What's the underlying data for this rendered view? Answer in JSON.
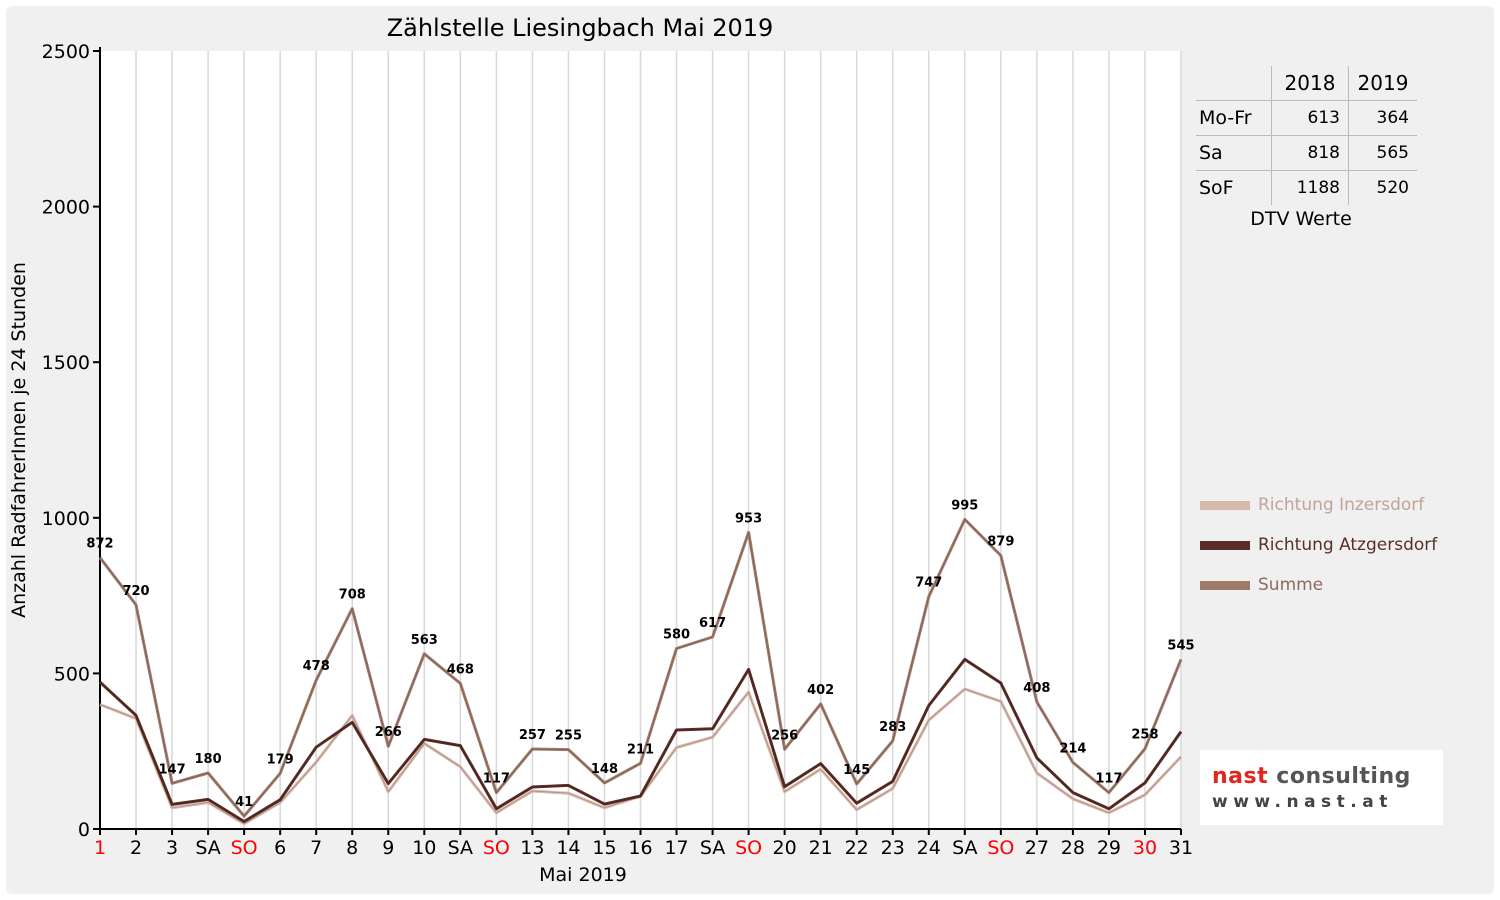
{
  "colors": {
    "background": "#f0f0f0",
    "inzersdorf": "#d9b9ab",
    "atzgersdorf": "#5a2e26",
    "summe": "#a07b6c",
    "weekend_label": "#ff0000",
    "grid": "#d8d8d8"
  },
  "chart_data": {
    "type": "line",
    "title": "Zählstelle Liesingbach Mai 2019",
    "xlabel": "Mai 2019",
    "ylabel": "Anzahl RadfahrerInnen je 24 Stunden",
    "ylim": [
      0,
      2500
    ],
    "yticks": [
      0,
      500,
      1000,
      1500,
      2000,
      2500
    ],
    "grid": true,
    "legend_position": "right",
    "categories": [
      "1",
      "2",
      "3",
      "SA",
      "SO",
      "6",
      "7",
      "8",
      "9",
      "10",
      "SA",
      "SO",
      "13",
      "14",
      "15",
      "16",
      "17",
      "SA",
      "SO",
      "20",
      "21",
      "22",
      "23",
      "24",
      "SA",
      "SO",
      "27",
      "28",
      "29",
      "30",
      "31"
    ],
    "red_category_indices": [
      0,
      4,
      11,
      18,
      25,
      29
    ],
    "series": [
      {
        "name": "Richtung Inzersdorf",
        "color": "#d9b9ab",
        "values": [
          400,
          355,
          68,
          85,
          17,
          85,
          215,
          365,
          120,
          275,
          200,
          52,
          122,
          115,
          68,
          105,
          262,
          295,
          440,
          120,
          192,
          62,
          130,
          350,
          450,
          410,
          180,
          97,
          52,
          110,
          232
        ]
      },
      {
        "name": "Richtung Atzgersdorf",
        "color": "#5a2e26",
        "values": [
          472,
          365,
          79,
          95,
          24,
          94,
          263,
          343,
          146,
          288,
          268,
          65,
          135,
          140,
          80,
          106,
          318,
          322,
          513,
          136,
          210,
          83,
          153,
          397,
          545,
          469,
          228,
          117,
          65,
          148,
          313
        ]
      },
      {
        "name": "Summe",
        "color": "#a07b6c",
        "values": [
          872,
          720,
          147,
          180,
          41,
          179,
          478,
          708,
          266,
          563,
          468,
          117,
          257,
          255,
          148,
          211,
          580,
          617,
          953,
          256,
          402,
          145,
          283,
          747,
          995,
          879,
          408,
          214,
          117,
          258,
          545
        ],
        "data_labels": [
          872,
          720,
          147,
          180,
          41,
          179,
          478,
          708,
          266,
          563,
          468,
          117,
          257,
          255,
          148,
          211,
          580,
          617,
          953,
          256,
          402,
          145,
          283,
          747,
          995,
          879,
          408,
          214,
          117,
          258,
          545
        ]
      }
    ]
  },
  "dtv_table": {
    "headers": [
      "",
      "2018",
      "2019"
    ],
    "rows": [
      {
        "label": "Mo-Fr",
        "v2018": "613",
        "v2019": "364"
      },
      {
        "label": "Sa",
        "v2018": "818",
        "v2019": "565"
      },
      {
        "label": "SoF",
        "v2018": "1188",
        "v2019": "520"
      }
    ],
    "caption": "DTV Werte"
  },
  "logo": {
    "name_part1": "nast",
    "name_part2": " consulting",
    "url": "www.nast.at"
  }
}
